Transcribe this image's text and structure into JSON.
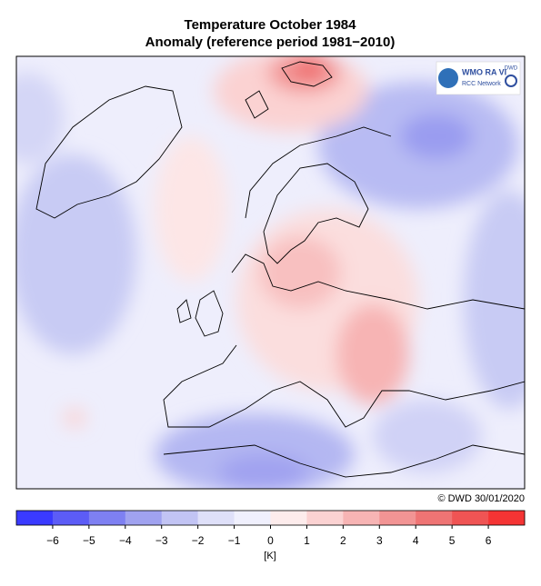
{
  "header": {
    "title": "Temperature October 1984",
    "subtitle": "Anomaly (reference period 1981−2010)"
  },
  "logo": {
    "name": "WMO RA VI",
    "network": "RCC Network",
    "service": "DWD"
  },
  "credit": "© DWD 30/01/2020",
  "colorbar": {
    "lim": [
      -7,
      7
    ],
    "colors": [
      "#3a3aff",
      "#5c5cf6",
      "#7e80f2",
      "#a0a2f0",
      "#c2c4f4",
      "#dfe0f9",
      "#f0f0fd",
      "#fdecec",
      "#fbd2d2",
      "#f7b4b4",
      "#f29494",
      "#ef7474",
      "#f05454",
      "#f53434"
    ],
    "ticks": [
      {
        "value": -6,
        "label": "−6"
      },
      {
        "value": -5,
        "label": "−5"
      },
      {
        "value": -4,
        "label": "−4"
      },
      {
        "value": -3,
        "label": "−3"
      },
      {
        "value": -2,
        "label": "−2"
      },
      {
        "value": -1,
        "label": "−1"
      },
      0,
      1,
      2,
      3,
      4,
      5,
      6
    ],
    "unit": "[K]"
  }
}
